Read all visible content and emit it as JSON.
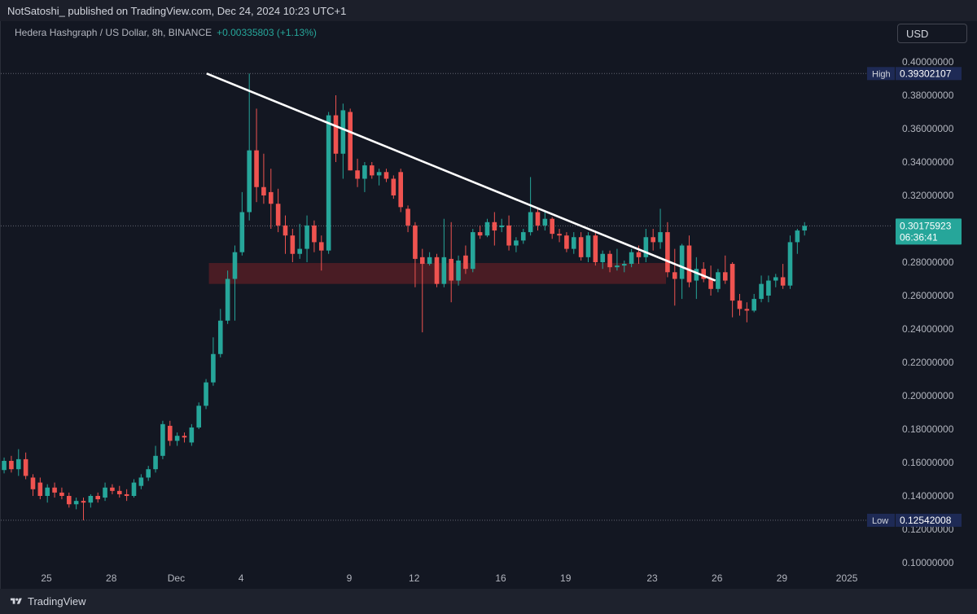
{
  "header": {
    "published_text": "NotSatoshi_  published on TradingView.com, Dec 24, 2024 10:23 UTC+1"
  },
  "symbol": {
    "title": "Hedera Hashgraph / US Dollar, 8h, BINANCE",
    "change": "+0.00335803 (+1.13%)"
  },
  "currency_button": "USD",
  "footer": {
    "brand": "TradingView"
  },
  "colors": {
    "background": "#131722",
    "up": "#26a69a",
    "down": "#ef5350",
    "trendline": "#ffffff",
    "zone": "#5c1f26",
    "label_high_low": "#1e2a55"
  },
  "chart_data": {
    "type": "candlestick",
    "interval": "8h",
    "y_axis": {
      "range": [
        0.1,
        0.41
      ],
      "ticks": [
        "0.40000000",
        "0.38000000",
        "0.36000000",
        "0.34000000",
        "0.32000000",
        "0.28000000",
        "0.26000000",
        "0.24000000",
        "0.22000000",
        "0.20000000",
        "0.18000000",
        "0.16000000",
        "0.14000000",
        "0.12000000",
        "0.10000000"
      ],
      "tick_values": [
        0.4,
        0.38,
        0.36,
        0.34,
        0.32,
        0.28,
        0.26,
        0.24,
        0.22,
        0.2,
        0.18,
        0.16,
        0.14,
        0.12,
        0.1
      ]
    },
    "x_axis": {
      "labels": [
        "25",
        "28",
        "Dec",
        "4",
        "9",
        "12",
        "16",
        "19",
        "23",
        "26",
        "29",
        "2025"
      ],
      "label_dates": [
        "2024-11-25",
        "2024-11-28",
        "2024-12-01",
        "2024-12-04",
        "2024-12-09",
        "2024-12-12",
        "2024-12-16",
        "2024-12-19",
        "2024-12-23",
        "2024-12-26",
        "2024-12-29",
        "2025-01-01"
      ]
    },
    "price_labels": {
      "high": {
        "label": "High",
        "value": "0.39302107",
        "y": 0.39302107
      },
      "low": {
        "label": "Low",
        "value": "0.12542008",
        "y": 0.12542008
      },
      "last": {
        "value": "0.30175923",
        "countdown": "06:36:41",
        "y": 0.30175923
      }
    },
    "support_zone": {
      "low": 0.267,
      "high": 0.2795,
      "from_date": "2024-12-03",
      "to_date": "2024-12-23"
    },
    "trendline": {
      "start": [
        "2024-12-02",
        0.393
      ],
      "end": [
        "2024-12-23",
        0.269
      ]
    },
    "candles": [
      {
        "t": "2024-11-23T00",
        "o": 0.1555,
        "h": 0.163,
        "l": 0.1535,
        "c": 0.161
      },
      {
        "t": "2024-11-23T08",
        "o": 0.161,
        "h": 0.164,
        "l": 0.154,
        "c": 0.156
      },
      {
        "t": "2024-11-23T16",
        "o": 0.156,
        "h": 0.168,
        "l": 0.152,
        "c": 0.162
      },
      {
        "t": "2024-11-24T00",
        "o": 0.162,
        "h": 0.166,
        "l": 0.15,
        "c": 0.152
      },
      {
        "t": "2024-11-24T08",
        "o": 0.151,
        "h": 0.153,
        "l": 0.14,
        "c": 0.144
      },
      {
        "t": "2024-11-24T16",
        "o": 0.148,
        "h": 0.151,
        "l": 0.138,
        "c": 0.14
      },
      {
        "t": "2024-11-25T00",
        "o": 0.14,
        "h": 0.147,
        "l": 0.136,
        "c": 0.145
      },
      {
        "t": "2024-11-25T08",
        "o": 0.145,
        "h": 0.148,
        "l": 0.139,
        "c": 0.142
      },
      {
        "t": "2024-11-25T16",
        "o": 0.142,
        "h": 0.145,
        "l": 0.138,
        "c": 0.14
      },
      {
        "t": "2024-11-26T00",
        "o": 0.14,
        "h": 0.142,
        "l": 0.133,
        "c": 0.135
      },
      {
        "t": "2024-11-26T08",
        "o": 0.135,
        "h": 0.139,
        "l": 0.132,
        "c": 0.137
      },
      {
        "t": "2024-11-26T16",
        "o": 0.137,
        "h": 0.139,
        "l": 0.1254,
        "c": 0.136
      },
      {
        "t": "2024-11-27T00",
        "o": 0.136,
        "h": 0.141,
        "l": 0.133,
        "c": 0.14
      },
      {
        "t": "2024-11-27T08",
        "o": 0.14,
        "h": 0.142,
        "l": 0.136,
        "c": 0.138
      },
      {
        "t": "2024-11-27T16",
        "o": 0.139,
        "h": 0.148,
        "l": 0.137,
        "c": 0.145
      },
      {
        "t": "2024-11-28T00",
        "o": 0.145,
        "h": 0.147,
        "l": 0.141,
        "c": 0.143
      },
      {
        "t": "2024-11-28T08",
        "o": 0.143,
        "h": 0.146,
        "l": 0.139,
        "c": 0.141
      },
      {
        "t": "2024-11-28T16",
        "o": 0.141,
        "h": 0.144,
        "l": 0.137,
        "c": 0.14
      },
      {
        "t": "2024-11-29T00",
        "o": 0.14,
        "h": 0.15,
        "l": 0.139,
        "c": 0.148
      },
      {
        "t": "2024-11-29T08",
        "o": 0.146,
        "h": 0.153,
        "l": 0.144,
        "c": 0.151
      },
      {
        "t": "2024-11-29T16",
        "o": 0.151,
        "h": 0.158,
        "l": 0.149,
        "c": 0.156
      },
      {
        "t": "2024-11-30T00",
        "o": 0.156,
        "h": 0.17,
        "l": 0.154,
        "c": 0.164
      },
      {
        "t": "2024-11-30T08",
        "o": 0.164,
        "h": 0.185,
        "l": 0.162,
        "c": 0.183
      },
      {
        "t": "2024-11-30T16",
        "o": 0.182,
        "h": 0.185,
        "l": 0.17,
        "c": 0.173
      },
      {
        "t": "2024-12-01T00",
        "o": 0.173,
        "h": 0.178,
        "l": 0.17,
        "c": 0.176
      },
      {
        "t": "2024-12-01T08",
        "o": 0.176,
        "h": 0.178,
        "l": 0.172,
        "c": 0.175
      },
      {
        "t": "2024-12-01T16",
        "o": 0.172,
        "h": 0.183,
        "l": 0.17,
        "c": 0.181
      },
      {
        "t": "2024-12-02T00",
        "o": 0.181,
        "h": 0.196,
        "l": 0.18,
        "c": 0.194
      },
      {
        "t": "2024-12-02T08",
        "o": 0.194,
        "h": 0.21,
        "l": 0.192,
        "c": 0.208
      },
      {
        "t": "2024-12-02T16",
        "o": 0.208,
        "h": 0.235,
        "l": 0.206,
        "c": 0.225
      },
      {
        "t": "2024-12-03T00",
        "o": 0.225,
        "h": 0.252,
        "l": 0.223,
        "c": 0.245
      },
      {
        "t": "2024-12-03T08",
        "o": 0.245,
        "h": 0.275,
        "l": 0.243,
        "c": 0.27
      },
      {
        "t": "2024-12-03T16",
        "o": 0.27,
        "h": 0.29,
        "l": 0.245,
        "c": 0.286
      },
      {
        "t": "2024-12-04T00",
        "o": 0.286,
        "h": 0.322,
        "l": 0.284,
        "c": 0.31
      },
      {
        "t": "2024-12-04T08",
        "o": 0.31,
        "h": 0.393,
        "l": 0.305,
        "c": 0.347
      },
      {
        "t": "2024-12-04T16",
        "o": 0.347,
        "h": 0.372,
        "l": 0.316,
        "c": 0.325
      },
      {
        "t": "2024-12-05T00",
        "o": 0.325,
        "h": 0.345,
        "l": 0.315,
        "c": 0.32
      },
      {
        "t": "2024-12-05T08",
        "o": 0.322,
        "h": 0.336,
        "l": 0.3,
        "c": 0.315
      },
      {
        "t": "2024-12-05T16",
        "o": 0.315,
        "h": 0.324,
        "l": 0.298,
        "c": 0.302
      },
      {
        "t": "2024-12-06T00",
        "o": 0.302,
        "h": 0.308,
        "l": 0.285,
        "c": 0.296
      },
      {
        "t": "2024-12-06T08",
        "o": 0.296,
        "h": 0.3,
        "l": 0.28,
        "c": 0.285
      },
      {
        "t": "2024-12-06T16",
        "o": 0.285,
        "h": 0.303,
        "l": 0.282,
        "c": 0.288
      },
      {
        "t": "2024-12-07T00",
        "o": 0.288,
        "h": 0.308,
        "l": 0.28,
        "c": 0.302
      },
      {
        "t": "2024-12-07T08",
        "o": 0.302,
        "h": 0.305,
        "l": 0.286,
        "c": 0.292
      },
      {
        "t": "2024-12-07T16",
        "o": 0.292,
        "h": 0.296,
        "l": 0.275,
        "c": 0.287
      },
      {
        "t": "2024-12-08T00",
        "o": 0.287,
        "h": 0.37,
        "l": 0.285,
        "c": 0.368
      },
      {
        "t": "2024-12-08T08",
        "o": 0.368,
        "h": 0.38,
        "l": 0.34,
        "c": 0.345
      },
      {
        "t": "2024-12-08T16",
        "o": 0.345,
        "h": 0.375,
        "l": 0.33,
        "c": 0.371
      },
      {
        "t": "2024-12-09T00",
        "o": 0.37,
        "h": 0.372,
        "l": 0.335,
        "c": 0.335
      },
      {
        "t": "2024-12-09T08",
        "o": 0.335,
        "h": 0.342,
        "l": 0.325,
        "c": 0.33
      },
      {
        "t": "2024-12-09T16",
        "o": 0.33,
        "h": 0.34,
        "l": 0.322,
        "c": 0.338
      },
      {
        "t": "2024-12-10T00",
        "o": 0.338,
        "h": 0.34,
        "l": 0.33,
        "c": 0.332
      },
      {
        "t": "2024-12-10T08",
        "o": 0.332,
        "h": 0.336,
        "l": 0.326,
        "c": 0.334
      },
      {
        "t": "2024-12-10T16",
        "o": 0.334,
        "h": 0.336,
        "l": 0.328,
        "c": 0.33
      },
      {
        "t": "2024-12-11T00",
        "o": 0.33,
        "h": 0.332,
        "l": 0.318,
        "c": 0.32
      },
      {
        "t": "2024-12-11T08",
        "o": 0.334,
        "h": 0.336,
        "l": 0.31,
        "c": 0.313
      },
      {
        "t": "2024-12-11T16",
        "o": 0.312,
        "h": 0.314,
        "l": 0.298,
        "c": 0.302
      },
      {
        "t": "2024-12-12T00",
        "o": 0.302,
        "h": 0.304,
        "l": 0.265,
        "c": 0.282
      },
      {
        "t": "2024-12-12T08",
        "o": 0.283,
        "h": 0.288,
        "l": 0.238,
        "c": 0.279
      },
      {
        "t": "2024-12-12T16",
        "o": 0.279,
        "h": 0.286,
        "l": 0.278,
        "c": 0.283
      },
      {
        "t": "2024-12-13T00",
        "o": 0.283,
        "h": 0.285,
        "l": 0.265,
        "c": 0.267
      },
      {
        "t": "2024-12-13T08",
        "o": 0.267,
        "h": 0.306,
        "l": 0.265,
        "c": 0.283
      },
      {
        "t": "2024-12-13T16",
        "o": 0.282,
        "h": 0.304,
        "l": 0.256,
        "c": 0.269
      },
      {
        "t": "2024-12-14T00",
        "o": 0.269,
        "h": 0.284,
        "l": 0.266,
        "c": 0.281
      },
      {
        "t": "2024-12-14T08",
        "o": 0.284,
        "h": 0.29,
        "l": 0.273,
        "c": 0.276
      },
      {
        "t": "2024-12-14T16",
        "o": 0.276,
        "h": 0.3,
        "l": 0.274,
        "c": 0.298
      },
      {
        "t": "2024-12-15T00",
        "o": 0.298,
        "h": 0.302,
        "l": 0.294,
        "c": 0.296
      },
      {
        "t": "2024-12-15T08",
        "o": 0.296,
        "h": 0.306,
        "l": 0.295,
        "c": 0.304
      },
      {
        "t": "2024-12-15T16",
        "o": 0.304,
        "h": 0.31,
        "l": 0.29,
        "c": 0.299
      },
      {
        "t": "2024-12-16T00",
        "o": 0.301,
        "h": 0.306,
        "l": 0.298,
        "c": 0.302
      },
      {
        "t": "2024-12-16T08",
        "o": 0.302,
        "h": 0.308,
        "l": 0.287,
        "c": 0.29
      },
      {
        "t": "2024-12-16T16",
        "o": 0.29,
        "h": 0.295,
        "l": 0.286,
        "c": 0.293
      },
      {
        "t": "2024-12-17T00",
        "o": 0.293,
        "h": 0.3,
        "l": 0.291,
        "c": 0.298
      },
      {
        "t": "2024-12-17T08",
        "o": 0.298,
        "h": 0.331,
        "l": 0.296,
        "c": 0.31
      },
      {
        "t": "2024-12-17T16",
        "o": 0.31,
        "h": 0.312,
        "l": 0.299,
        "c": 0.302
      },
      {
        "t": "2024-12-18T00",
        "o": 0.302,
        "h": 0.31,
        "l": 0.299,
        "c": 0.306
      },
      {
        "t": "2024-12-18T08",
        "o": 0.306,
        "h": 0.307,
        "l": 0.294,
        "c": 0.297
      },
      {
        "t": "2024-12-18T16",
        "o": 0.297,
        "h": 0.3,
        "l": 0.292,
        "c": 0.296
      },
      {
        "t": "2024-12-19T00",
        "o": 0.296,
        "h": 0.298,
        "l": 0.286,
        "c": 0.288
      },
      {
        "t": "2024-12-19T08",
        "o": 0.288,
        "h": 0.298,
        "l": 0.285,
        "c": 0.295
      },
      {
        "t": "2024-12-19T16",
        "o": 0.295,
        "h": 0.298,
        "l": 0.281,
        "c": 0.283
      },
      {
        "t": "2024-12-20T00",
        "o": 0.283,
        "h": 0.298,
        "l": 0.28,
        "c": 0.296
      },
      {
        "t": "2024-12-20T08",
        "o": 0.296,
        "h": 0.299,
        "l": 0.278,
        "c": 0.28
      },
      {
        "t": "2024-12-20T16",
        "o": 0.28,
        "h": 0.287,
        "l": 0.276,
        "c": 0.285
      },
      {
        "t": "2024-12-21T00",
        "o": 0.285,
        "h": 0.287,
        "l": 0.274,
        "c": 0.277
      },
      {
        "t": "2024-12-21T08",
        "o": 0.277,
        "h": 0.288,
        "l": 0.275,
        "c": 0.278
      },
      {
        "t": "2024-12-21T16",
        "o": 0.278,
        "h": 0.281,
        "l": 0.274,
        "c": 0.279
      },
      {
        "t": "2024-12-22T00",
        "o": 0.279,
        "h": 0.288,
        "l": 0.277,
        "c": 0.286
      },
      {
        "t": "2024-12-22T08",
        "o": 0.286,
        "h": 0.29,
        "l": 0.279,
        "c": 0.283
      },
      {
        "t": "2024-12-22T16",
        "o": 0.283,
        "h": 0.3,
        "l": 0.28,
        "c": 0.295
      },
      {
        "t": "2024-12-23T00",
        "o": 0.295,
        "h": 0.3,
        "l": 0.287,
        "c": 0.292
      },
      {
        "t": "2024-12-23T08",
        "o": 0.292,
        "h": 0.312,
        "l": 0.288,
        "c": 0.298
      },
      {
        "t": "2024-12-23T16",
        "o": 0.298,
        "h": 0.304,
        "l": 0.271,
        "c": 0.274
      },
      {
        "t": "2024-12-24T00",
        "o": 0.274,
        "h": 0.288,
        "l": 0.254,
        "c": 0.27
      },
      {
        "t": "2024-12-24T08",
        "o": 0.27,
        "h": 0.291,
        "l": 0.258,
        "c": 0.29
      },
      {
        "t": "2024-12-24T16",
        "o": 0.29,
        "h": 0.296,
        "l": 0.265,
        "c": 0.268
      },
      {
        "t": "2024-12-25T00",
        "o": 0.269,
        "h": 0.283,
        "l": 0.258,
        "c": 0.276
      },
      {
        "t": "2024-12-25T08",
        "o": 0.276,
        "h": 0.28,
        "l": 0.268,
        "c": 0.27
      },
      {
        "t": "2024-12-25T16",
        "o": 0.27,
        "h": 0.278,
        "l": 0.26,
        "c": 0.264
      },
      {
        "t": "2024-12-26T00",
        "o": 0.264,
        "h": 0.276,
        "l": 0.262,
        "c": 0.274
      },
      {
        "t": "2024-12-26T08",
        "o": 0.274,
        "h": 0.284,
        "l": 0.267,
        "c": 0.269
      },
      {
        "t": "2024-12-26T16",
        "o": 0.279,
        "h": 0.28,
        "l": 0.247,
        "c": 0.257
      },
      {
        "t": "2024-12-27T00",
        "o": 0.257,
        "h": 0.261,
        "l": 0.248,
        "c": 0.252
      },
      {
        "t": "2024-12-27T08",
        "o": 0.252,
        "h": 0.256,
        "l": 0.244,
        "c": 0.251
      },
      {
        "t": "2024-12-27T16",
        "o": 0.251,
        "h": 0.261,
        "l": 0.25,
        "c": 0.258
      },
      {
        "t": "2024-12-28T00",
        "o": 0.258,
        "h": 0.272,
        "l": 0.256,
        "c": 0.267
      },
      {
        "t": "2024-12-28T08",
        "o": 0.26,
        "h": 0.272,
        "l": 0.256,
        "c": 0.269
      },
      {
        "t": "2024-12-28T16",
        "o": 0.269,
        "h": 0.273,
        "l": 0.265,
        "c": 0.271
      },
      {
        "t": "2024-12-29T00",
        "o": 0.271,
        "h": 0.279,
        "l": 0.264,
        "c": 0.266
      },
      {
        "t": "2024-12-29T08",
        "o": 0.266,
        "h": 0.296,
        "l": 0.264,
        "c": 0.292
      },
      {
        "t": "2024-12-29T16",
        "o": 0.292,
        "h": 0.3,
        "l": 0.285,
        "c": 0.299
      },
      {
        "t": "2024-12-30T00",
        "o": 0.299,
        "h": 0.304,
        "l": 0.296,
        "c": 0.3018
      }
    ]
  }
}
